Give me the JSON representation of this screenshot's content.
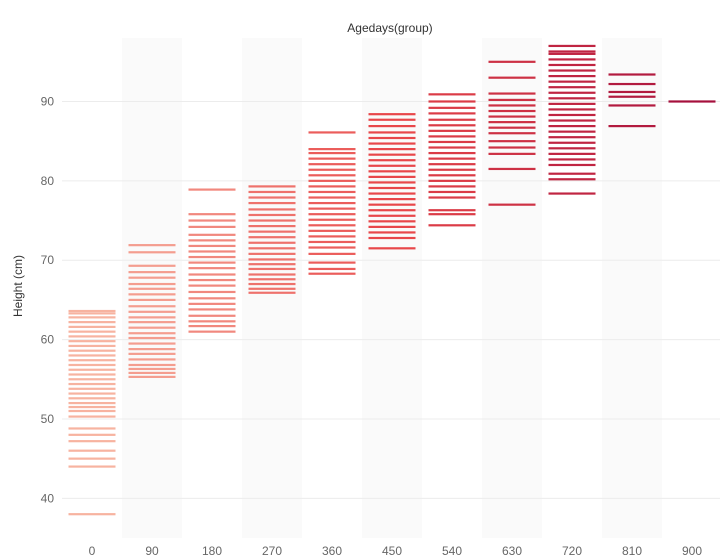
{
  "chart_data": {
    "type": "strip",
    "title": "Agedays(group)",
    "xlabel": "",
    "ylabel": "Height (cm)",
    "ylim": [
      35,
      98
    ],
    "yticks": [
      40,
      50,
      60,
      70,
      80,
      90
    ],
    "grid": true,
    "color_scale": [
      "#f7b3a0",
      "#e8474a",
      "#a50f3c"
    ],
    "categories": [
      "0",
      "90",
      "180",
      "270",
      "360",
      "450",
      "540",
      "630",
      "720",
      "810",
      "900"
    ],
    "values": [
      [
        38.0,
        44.0,
        45.0,
        46.0,
        47.2,
        48.0,
        48.8,
        50.3,
        51.0,
        51.5,
        52.0,
        52.6,
        53.2,
        53.8,
        54.4,
        55.0,
        55.6,
        56.2,
        56.8,
        57.4,
        58.0,
        58.6,
        59.2,
        59.8,
        60.4,
        61.0,
        61.6,
        62.2,
        62.8,
        63.3,
        63.6
      ],
      [
        55.3,
        55.8,
        56.3,
        56.8,
        57.5,
        58.2,
        58.8,
        59.5,
        60.2,
        60.8,
        61.5,
        62.2,
        62.8,
        63.5,
        64.2,
        65.0,
        65.7,
        66.4,
        67.0,
        67.8,
        68.5,
        69.3,
        71.0,
        71.9
      ],
      [
        61.0,
        61.7,
        62.3,
        63.0,
        63.8,
        64.5,
        65.2,
        66.0,
        66.8,
        67.5,
        68.2,
        69.0,
        69.7,
        70.4,
        71.1,
        71.8,
        72.5,
        73.2,
        74.2,
        75.0,
        75.8,
        78.9
      ],
      [
        65.9,
        66.4,
        67.0,
        67.6,
        68.2,
        68.9,
        69.5,
        70.1,
        70.8,
        71.5,
        72.2,
        72.9,
        73.6,
        74.3,
        75.0,
        75.7,
        76.4,
        77.2,
        77.9,
        78.6,
        79.3
      ],
      [
        68.3,
        68.9,
        69.7,
        70.8,
        71.6,
        72.3,
        73.0,
        73.7,
        74.4,
        75.1,
        75.8,
        76.5,
        77.2,
        77.9,
        78.6,
        79.3,
        80.0,
        80.7,
        81.4,
        82.1,
        82.8,
        83.5,
        84.0,
        86.1
      ],
      [
        71.5,
        72.8,
        73.5,
        74.2,
        74.9,
        75.6,
        76.3,
        77.0,
        77.7,
        78.4,
        79.1,
        79.8,
        80.5,
        81.2,
        81.9,
        82.6,
        83.3,
        84.0,
        84.7,
        85.4,
        86.1,
        86.9,
        87.7,
        88.4
      ],
      [
        74.4,
        75.8,
        76.3,
        77.9,
        78.6,
        79.3,
        80.0,
        80.7,
        81.4,
        82.1,
        82.8,
        83.5,
        84.2,
        84.9,
        85.6,
        86.3,
        87.0,
        87.7,
        88.5,
        89.2,
        90.0,
        90.9
      ],
      [
        77.0,
        81.5,
        83.4,
        84.2,
        85.0,
        86.0,
        86.7,
        87.4,
        88.1,
        88.8,
        89.5,
        90.2,
        91.0,
        93.0,
        95.0
      ],
      [
        78.4,
        80.2,
        80.9,
        82.0,
        82.7,
        83.4,
        84.1,
        84.8,
        85.5,
        86.2,
        86.9,
        87.6,
        88.3,
        89.0,
        89.7,
        90.4,
        91.1,
        91.8,
        92.5,
        93.2,
        93.9,
        94.6,
        95.3,
        96.0,
        96.3,
        97.0
      ],
      [
        86.9,
        89.5,
        90.6,
        91.2,
        92.2,
        93.4
      ],
      [
        90.0
      ]
    ]
  }
}
